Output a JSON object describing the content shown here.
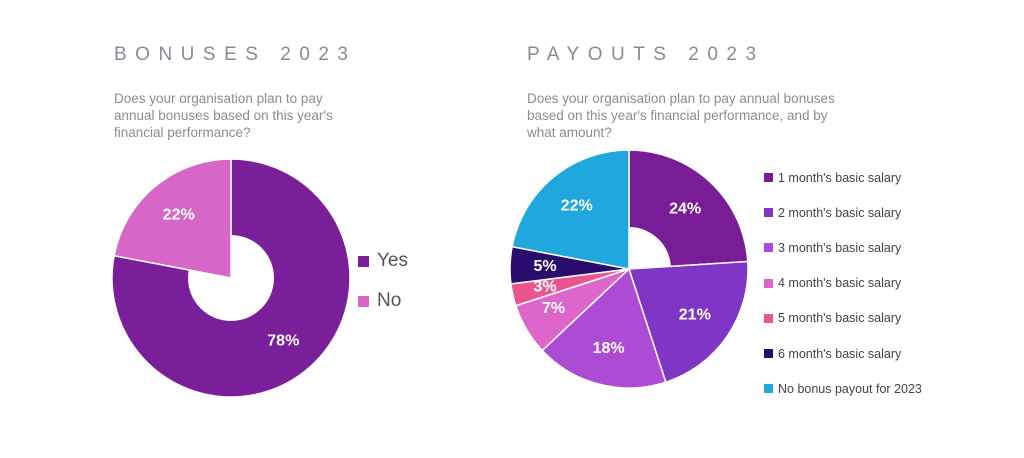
{
  "chart_data": [
    {
      "type": "pie",
      "title": "BONUSES 2023",
      "subtitle": "Does your organisation plan to pay annual bonuses based on this year's financial performance?",
      "categories": [
        "Yes",
        "No"
      ],
      "values": [
        78,
        22
      ],
      "value_labels": [
        "78%",
        "22%"
      ],
      "colors": [
        "#7a1f9a",
        "#d766c9"
      ],
      "legend_placement": "right"
    },
    {
      "type": "pie",
      "title": "PAYOUTS 2023",
      "subtitle": "Does your organisation plan to pay annual bonuses based on this year's financial performance, and by what amount?",
      "categories": [
        "1 month's basic salary",
        "2 month's basic salary",
        "3 month's basic salary",
        "4 month's basic salary",
        "5 month's basic salary",
        "6 month's basic salary",
        "No bonus payout for 2023"
      ],
      "values": [
        24,
        21,
        18,
        7,
        3,
        5,
        22
      ],
      "value_labels": [
        "24%",
        "21%",
        "18%",
        "7%",
        "3%",
        "5%",
        "22%"
      ],
      "colors": [
        "#791d96",
        "#7f36c4",
        "#ac4bd4",
        "#dd66cb",
        "#e9558e",
        "#2a0b6e",
        "#1fa7de"
      ],
      "legend_placement": "right"
    }
  ]
}
